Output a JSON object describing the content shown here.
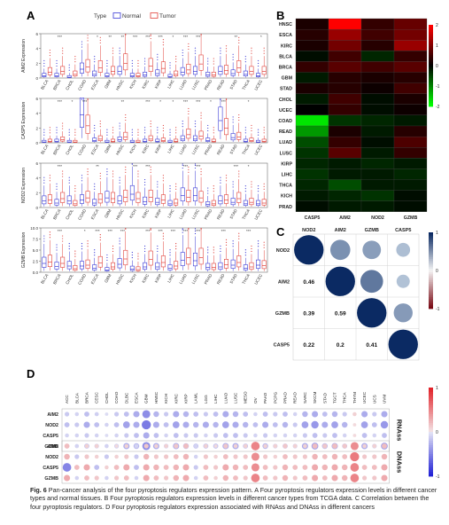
{
  "figure_number": "Fig. 6",
  "caption": {
    "prefix": "Fig. 6",
    "body": " Pan-cancer analysis of the four pyroptosis regulators expression pattern. A Four pyroptosis regulators expression levels in different cancer types and normal tissues. B Four pyroptosis regulators expression levels in different cancer types from TCGA data. C Correlation between the four pyroptosis regulators. D Four pyroptosis regulators expression associated with RNAss and DNAss in different cancers"
  },
  "panel_labels": {
    "a": "A",
    "b": "B",
    "c": "C",
    "d": "D"
  },
  "colors": {
    "normal": "#3b3bd6",
    "tumor": "#e0403a",
    "heat_high": "#ff0000",
    "heat_mid": "#000000",
    "heat_low": "#00ff00",
    "corr_pos": "#0b2a63",
    "corr_neg": "#7a0b16"
  },
  "chart_data": [
    {
      "type": "box",
      "panel": "A",
      "legend_title": "Type",
      "series": [
        {
          "name": "Normal"
        },
        {
          "name": "Tumor"
        }
      ],
      "categories": [
        "BLCA",
        "BRCA",
        "CHOL",
        "COAD",
        "ESCA",
        "GBM",
        "HNSC",
        "KICH",
        "KIRC",
        "KIRP",
        "LIHC",
        "LUAD",
        "LUSC",
        "PRAD",
        "READ",
        "STAD",
        "THCA",
        "UCEC"
      ],
      "rows": [
        {
          "ylabel": "AIM2 Expression",
          "ylim": [
            0,
            6
          ],
          "yticks": [
            "0",
            "2",
            "4",
            "6"
          ],
          "sig": [
            "",
            "***",
            "",
            "",
            "*",
            "**",
            "**",
            "***",
            "***",
            "***",
            "*",
            "***",
            "***",
            "",
            "",
            "**",
            "",
            "*"
          ],
          "normal_median": [
            0.3,
            0.3,
            0.1,
            1.2,
            0.5,
            0.3,
            0.9,
            0.3,
            0.4,
            0.6,
            0.2,
            0.8,
            0.9,
            0.4,
            0.9,
            0.6,
            0.5,
            0.3
          ],
          "tumor_median": [
            0.8,
            0.9,
            0.5,
            1.5,
            1.4,
            0.9,
            2.0,
            0.3,
            1.6,
            1.3,
            0.5,
            1.1,
            1.9,
            0.4,
            1.0,
            1.4,
            0.9,
            0.9
          ]
        },
        {
          "ylabel": "CASP5 Expression",
          "ylim": [
            0,
            6
          ],
          "yticks": [
            "0",
            "2",
            "4",
            "6"
          ],
          "sig": [
            "",
            "***",
            "*",
            "***",
            "",
            "",
            "**",
            "",
            "***",
            "*",
            "*",
            "***",
            "***",
            "*",
            "***",
            "",
            "*",
            ""
          ],
          "normal_median": [
            0.1,
            0.2,
            0.1,
            3.8,
            0.3,
            0.1,
            0.4,
            0.1,
            0.2,
            0.2,
            0.1,
            0.5,
            0.5,
            0.3,
            3.0,
            0.7,
            0.2,
            0.1
          ],
          "tumor_median": [
            0.2,
            0.4,
            0.1,
            2.3,
            0.5,
            0.2,
            0.8,
            0.1,
            0.5,
            0.3,
            0.2,
            1.1,
            0.9,
            0.2,
            2.0,
            0.8,
            0.3,
            0.2
          ]
        },
        {
          "ylabel": "NOD2 Expression",
          "ylim": [
            0,
            6
          ],
          "yticks": [
            "0",
            "2",
            "4",
            "6"
          ],
          "sig": [
            "",
            "***",
            "",
            "",
            "**",
            "",
            "",
            "***",
            "***",
            "",
            "",
            "***",
            "***",
            "",
            "",
            "***",
            "*",
            ""
          ],
          "normal_median": [
            0.9,
            0.6,
            0.9,
            1.0,
            0.6,
            1.3,
            0.9,
            1.8,
            0.8,
            0.7,
            0.5,
            1.6,
            1.6,
            0.4,
            0.9,
            0.7,
            0.5,
            0.5
          ],
          "tumor_median": [
            1.0,
            1.2,
            0.5,
            1.3,
            1.1,
            1.2,
            1.4,
            1.2,
            1.4,
            1.0,
            0.6,
            1.4,
            1.3,
            0.5,
            1.0,
            1.2,
            0.7,
            0.6
          ]
        },
        {
          "ylabel": "GZMB Expression",
          "ylim": [
            0,
            10
          ],
          "yticks": [
            "0.0",
            "2.5",
            "5.0",
            "7.5",
            "10.0"
          ],
          "sig": [
            "",
            "***",
            "",
            "*",
            "***",
            "***",
            "***",
            "",
            "***",
            "***",
            "***",
            "***",
            "***",
            "",
            "***",
            "",
            "***",
            ""
          ],
          "normal_median": [
            2.0,
            1.3,
            1.4,
            1.4,
            0.9,
            0.5,
            1.8,
            0.7,
            1.2,
            1.2,
            0.9,
            2.7,
            2.6,
            1.1,
            1.2,
            1.6,
            0.9,
            1.6
          ],
          "tumor_median": [
            2.3,
            2.0,
            0.8,
            1.6,
            2.1,
            1.2,
            3.0,
            0.6,
            2.9,
            2.2,
            1.4,
            3.3,
            3.3,
            1.1,
            1.7,
            2.2,
            1.2,
            1.5
          ]
        }
      ]
    },
    {
      "type": "heatmap",
      "panel": "B",
      "rows": [
        "HNSC",
        "ESCA",
        "KIRC",
        "BLCA",
        "BRCA",
        "GBM",
        "STAD",
        "CHOL",
        "UCEC",
        "COAD",
        "READ",
        "LUAD",
        "LUSC",
        "KIRP",
        "LIHC",
        "THCA",
        "KICH",
        "PRAD"
      ],
      "columns": [
        "CASP5",
        "AIM2",
        "NOD2",
        "GZMB"
      ],
      "values": [
        [
          0.2,
          2.0,
          0.4,
          0.8
        ],
        [
          0.3,
          1.2,
          0.5,
          0.9
        ],
        [
          0.2,
          0.9,
          0.3,
          1.2
        ],
        [
          -0.1,
          0.5,
          -0.3,
          0.4
        ],
        [
          0.4,
          0.7,
          0.5,
          0.7
        ],
        [
          -0.2,
          0.3,
          0.2,
          0.3
        ],
        [
          0.2,
          0.3,
          0.1,
          0.5
        ],
        [
          -0.2,
          0.5,
          -0.1,
          0.2
        ],
        [
          0.0,
          0.4,
          -0.1,
          0.1
        ],
        [
          -1.8,
          -0.4,
          -0.3,
          -0.2
        ],
        [
          -1.2,
          0.2,
          -0.2,
          0.3
        ],
        [
          -0.6,
          0.4,
          -0.1,
          0.6
        ],
        [
          -0.4,
          0.7,
          -0.2,
          0.4
        ],
        [
          -0.3,
          -0.2,
          -0.3,
          -0.2
        ],
        [
          -0.4,
          -0.2,
          -0.2,
          -0.3
        ],
        [
          -0.3,
          -0.6,
          -0.2,
          -0.2
        ],
        [
          -0.2,
          -0.3,
          -0.4,
          -0.1
        ],
        [
          -0.1,
          -0.2,
          -0.2,
          -0.1
        ]
      ],
      "scale_ticks": [
        "2",
        "1",
        "0",
        "-1",
        "-2"
      ],
      "vmin": -2,
      "vmax": 2
    },
    {
      "type": "correlation",
      "panel": "C",
      "labels": [
        "NOD2",
        "AIM2",
        "GZMB",
        "CASP5"
      ],
      "matrix": [
        [
          1,
          0.46,
          0.39,
          0.22
        ],
        [
          0.46,
          1,
          0.59,
          0.2
        ],
        [
          0.39,
          0.59,
          1,
          0.41
        ],
        [
          0.22,
          0.2,
          0.41,
          1
        ]
      ],
      "lower_labels": [
        [
          "0.46"
        ],
        [
          "0.39",
          "0.59"
        ],
        [
          "0.22",
          "0.2",
          "0.41"
        ]
      ],
      "scale_ticks": [
        "1",
        "0",
        "-1"
      ]
    },
    {
      "type": "dotplot",
      "panel": "D",
      "columns": [
        "ACC",
        "BLCA",
        "BRCA",
        "CESC",
        "CHOL",
        "COAD",
        "DLBC",
        "ESCA",
        "GBM",
        "HNSC",
        "KICH",
        "KIRC",
        "KIRP",
        "LAML",
        "LGG",
        "LIHC",
        "LUAD",
        "LUSC",
        "MESO",
        "OV",
        "PAAD",
        "PCPG",
        "PRAD",
        "READ",
        "SARC",
        "SKCM",
        "STAD",
        "TGCT",
        "THCA",
        "THYM",
        "UCEC",
        "UCS",
        "UVM"
      ],
      "groups": [
        {
          "name": "RNAss",
          "rows": [
            "AIM2",
            "NOD2",
            "CASP5",
            "GZMB"
          ],
          "values": [
            [
              -0.15,
              -0.1,
              -0.2,
              -0.12,
              -0.05,
              -0.15,
              -0.2,
              -0.3,
              -0.45,
              -0.25,
              -0.15,
              -0.3,
              -0.25,
              -0.2,
              -0.15,
              -0.2,
              -0.3,
              -0.25,
              -0.2,
              -0.1,
              -0.2,
              -0.15,
              -0.2,
              -0.1,
              -0.25,
              -0.3,
              -0.2,
              -0.25,
              -0.15,
              0.1,
              -0.3,
              -0.15,
              -0.3
            ],
            [
              -0.2,
              -0.15,
              -0.3,
              -0.2,
              -0.1,
              -0.2,
              -0.35,
              -0.3,
              -0.55,
              -0.3,
              -0.2,
              -0.35,
              -0.3,
              -0.25,
              -0.3,
              -0.25,
              -0.35,
              -0.3,
              -0.25,
              -0.2,
              -0.3,
              -0.2,
              -0.25,
              -0.15,
              -0.35,
              -0.4,
              -0.3,
              -0.35,
              -0.25,
              0.05,
              -0.35,
              -0.2,
              -0.4
            ],
            [
              -0.1,
              -0.1,
              -0.15,
              -0.1,
              -0.05,
              -0.1,
              -0.15,
              -0.2,
              -0.3,
              -0.2,
              -0.1,
              -0.2,
              -0.15,
              -0.15,
              -0.1,
              -0.15,
              -0.2,
              -0.2,
              -0.15,
              -0.1,
              -0.15,
              -0.1,
              -0.1,
              -0.1,
              -0.15,
              -0.2,
              -0.15,
              -0.2,
              -0.1,
              0.05,
              -0.2,
              -0.1,
              -0.2
            ],
            [
              -0.15,
              -0.1,
              -0.2,
              -0.15,
              -0.1,
              -0.15,
              -0.3,
              -0.25,
              -0.45,
              -0.3,
              -0.15,
              -0.3,
              -0.25,
              -0.2,
              -0.2,
              -0.2,
              -0.3,
              -0.3,
              -0.2,
              -0.15,
              -0.25,
              -0.15,
              -0.2,
              -0.15,
              -0.3,
              -0.35,
              -0.25,
              -0.3,
              -0.2,
              0.1,
              -0.3,
              -0.15,
              -0.35
            ]
          ]
        },
        {
          "name": "DNAss",
          "rows": [
            "AIM2",
            "NOD2",
            "CASP5",
            "GZMB"
          ],
          "values": [
            [
              0.2,
              -0.1,
              0.1,
              0.1,
              -0.1,
              0.05,
              0.1,
              -0.1,
              0.15,
              0.1,
              0.1,
              0.15,
              0.2,
              -0.1,
              0.1,
              0.05,
              0.15,
              0.1,
              0.1,
              0.5,
              0.1,
              0.1,
              0.15,
              0.1,
              0.1,
              0.2,
              0.15,
              0.2,
              0.15,
              0.45,
              0.1,
              0.1,
              0.2
            ],
            [
              0.25,
              -0.15,
              0.15,
              0.1,
              -0.15,
              0.1,
              0.15,
              -0.15,
              0.25,
              0.15,
              0.15,
              0.2,
              0.25,
              -0.1,
              0.15,
              0.1,
              0.2,
              0.15,
              0.15,
              0.45,
              0.15,
              0.1,
              0.2,
              0.15,
              0.15,
              0.25,
              0.2,
              0.25,
              0.2,
              0.55,
              0.15,
              0.15,
              0.25
            ],
            [
              -0.5,
              0.2,
              0.3,
              -0.2,
              0.1,
              0.2,
              0.3,
              -0.2,
              0.3,
              0.25,
              0.2,
              0.25,
              0.3,
              -0.15,
              0.2,
              0.15,
              0.3,
              0.25,
              0.2,
              0.45,
              0.2,
              0.15,
              0.25,
              0.2,
              0.2,
              0.3,
              0.25,
              0.3,
              0.25,
              0.5,
              0.2,
              0.2,
              0.3
            ],
            [
              0.3,
              -0.1,
              0.2,
              0.15,
              -0.1,
              0.15,
              0.2,
              -0.1,
              0.3,
              0.2,
              0.15,
              0.25,
              0.3,
              -0.1,
              0.2,
              0.1,
              0.25,
              0.2,
              0.15,
              0.5,
              0.2,
              0.15,
              0.25,
              0.15,
              0.2,
              0.3,
              0.2,
              0.3,
              0.25,
              0.5,
              0.15,
              0.15,
              0.3
            ]
          ]
        }
      ],
      "scale_ticks": [
        "1",
        "0",
        "-1"
      ]
    }
  ]
}
